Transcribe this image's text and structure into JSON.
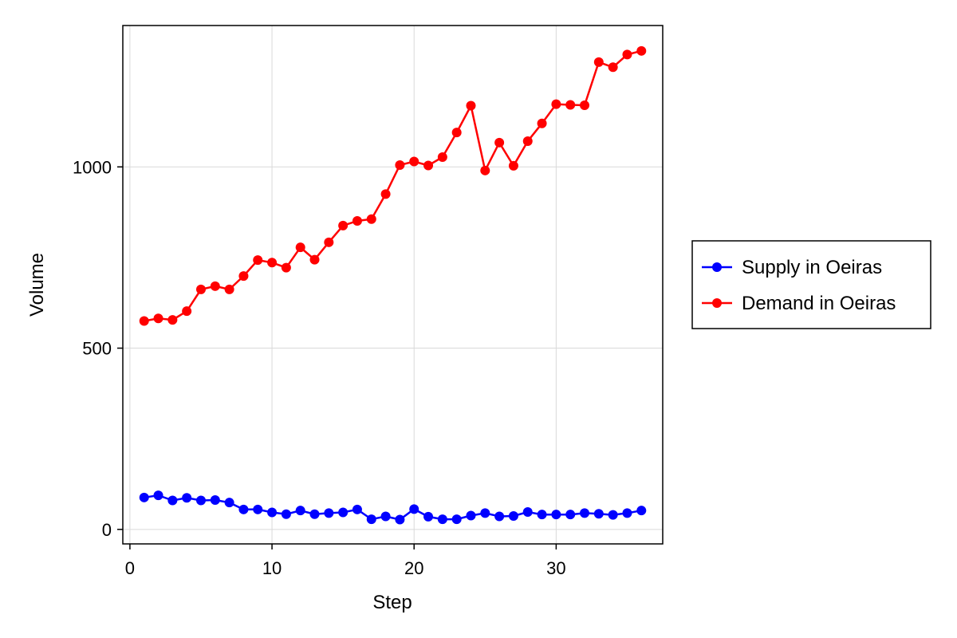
{
  "chart_data": {
    "type": "line",
    "xlabel": "Step",
    "ylabel": "Volume",
    "xlim": [
      -0.5,
      37.5
    ],
    "ylim": [
      -40,
      1390
    ],
    "xticks": [
      0,
      10,
      20,
      30
    ],
    "yticks": [
      0,
      500,
      1000
    ],
    "grid": true,
    "legend_position": "right",
    "series": [
      {
        "name": "Supply in Oeiras",
        "color": "#0000ff",
        "x": [
          1,
          2,
          3,
          4,
          5,
          6,
          7,
          8,
          9,
          10,
          11,
          12,
          13,
          14,
          15,
          16,
          17,
          18,
          19,
          20,
          21,
          22,
          23,
          24,
          25,
          26,
          27,
          28,
          29,
          30,
          31,
          32,
          33,
          34,
          35,
          36
        ],
        "values": [
          88,
          94,
          80,
          87,
          80,
          81,
          74,
          55,
          55,
          47,
          42,
          52,
          42,
          45,
          47,
          55,
          28,
          36,
          27,
          56,
          35,
          28,
          28,
          38,
          45,
          36,
          37,
          48,
          41,
          41,
          41,
          45,
          43,
          40,
          45,
          52
        ]
      },
      {
        "name": "Demand in Oeiras",
        "color": "#ff0000",
        "x": [
          1,
          2,
          3,
          4,
          5,
          6,
          7,
          8,
          9,
          10,
          11,
          12,
          13,
          14,
          15,
          16,
          17,
          18,
          19,
          20,
          21,
          22,
          23,
          24,
          25,
          26,
          27,
          28,
          29,
          30,
          31,
          32,
          33,
          34,
          35,
          36
        ],
        "values": [
          575,
          582,
          578,
          602,
          662,
          671,
          662,
          699,
          743,
          736,
          722,
          778,
          744,
          792,
          838,
          851,
          856,
          925,
          1005,
          1015,
          1004,
          1027,
          1095,
          1169,
          990,
          1067,
          1003,
          1071,
          1120,
          1173,
          1171,
          1170,
          1289,
          1275,
          1310,
          1320
        ]
      }
    ]
  }
}
